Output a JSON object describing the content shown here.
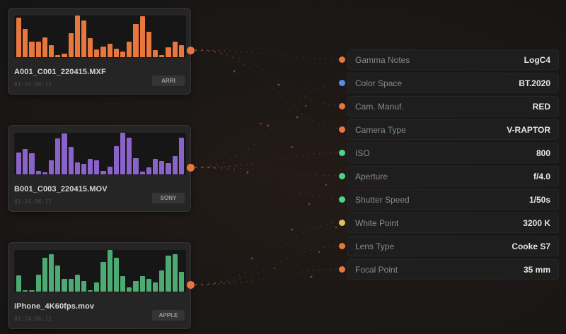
{
  "clips": [
    {
      "name": "A001_C001_220415.MXF",
      "timecode": "01:24:06:12",
      "badge": "ARRI",
      "color": "#e8773e",
      "bars": [
        95,
        68,
        38,
        37,
        47,
        28,
        5,
        9,
        58,
        100,
        89,
        46,
        19,
        25,
        33,
        21,
        13,
        37,
        80,
        98,
        61,
        17,
        5,
        24,
        38,
        28
      ]
    },
    {
      "name": "B001_C003_220415.MOV",
      "timecode": "01:24:06:12",
      "badge": "SONY",
      "color": "#8a63c9",
      "bars": [
        52,
        61,
        51,
        8,
        5,
        34,
        86,
        99,
        66,
        29,
        25,
        37,
        34,
        8,
        19,
        67,
        100,
        88,
        39,
        6,
        17,
        38,
        33,
        27,
        44,
        88
      ]
    },
    {
      "name": "iPhone_4K60fps.mov",
      "timecode": "01:24:06:12",
      "badge": "APPLE",
      "color": "#4caa72",
      "bars": [
        39,
        4,
        4,
        40,
        82,
        90,
        62,
        31,
        31,
        40,
        26,
        3,
        22,
        72,
        100,
        82,
        37,
        11,
        25,
        37,
        30,
        22,
        51,
        87,
        90,
        47
      ]
    }
  ],
  "port_color": "#e8773e",
  "metadata": [
    {
      "label": "Gamma Notes",
      "value": "LogC4",
      "dot": "#e8773e"
    },
    {
      "label": "Color Space",
      "value": "BT.2020",
      "dot": "#5b8de8"
    },
    {
      "label": "Cam. Manuf.",
      "value": "RED",
      "dot": "#e8773e"
    },
    {
      "label": "Camera Type",
      "value": "V-RAPTOR",
      "dot": "#e8773e"
    },
    {
      "label": "ISO",
      "value": "800",
      "dot": "#4fd38a"
    },
    {
      "label": "Aperture",
      "value": "f/4.0",
      "dot": "#4fd38a"
    },
    {
      "label": "Shutter Speed",
      "value": "1/50s",
      "dot": "#4fd38a"
    },
    {
      "label": "White Point",
      "value": "3200 K",
      "dot": "#e0c060"
    },
    {
      "label": "Lens Type",
      "value": "Cooke S7",
      "dot": "#e8773e"
    },
    {
      "label": "Focal Point",
      "value": "35 mm",
      "dot": "#e8773e"
    }
  ]
}
